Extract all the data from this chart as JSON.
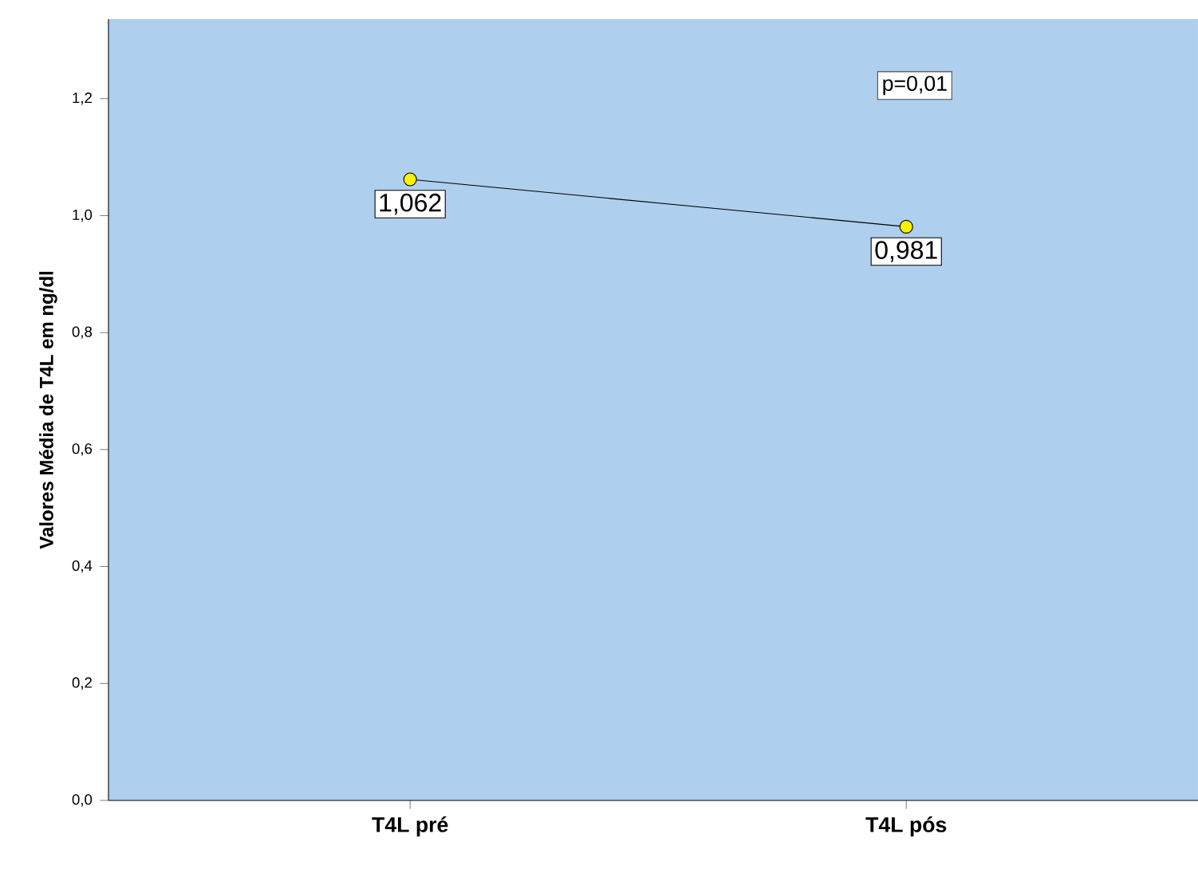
{
  "chart_data": {
    "type": "line",
    "ylabel": "Valores Média de T4L em ng/dl",
    "categories": [
      "T4L pré",
      "T4L pós"
    ],
    "series": [
      {
        "color": "#000000",
        "values": [
          1.062,
          0.981
        ],
        "value_labels": [
          "1,062",
          "0,981"
        ]
      }
    ],
    "marker": "circle",
    "ylim": [
      0,
      1.336
    ],
    "yticks": [
      {
        "value": 0,
        "label": "0,0"
      },
      {
        "value": 0.2,
        "label": "0,2"
      },
      {
        "value": 0.4,
        "label": "0,4"
      },
      {
        "value": 0.6,
        "label": "0,6"
      },
      {
        "value": 0.8,
        "label": "0,8"
      },
      {
        "value": 1.0,
        "label": "1,0"
      },
      {
        "value": 1.2,
        "label": "1,2"
      }
    ],
    "annotations": [
      "p=0,01"
    ],
    "grid": false
  }
}
